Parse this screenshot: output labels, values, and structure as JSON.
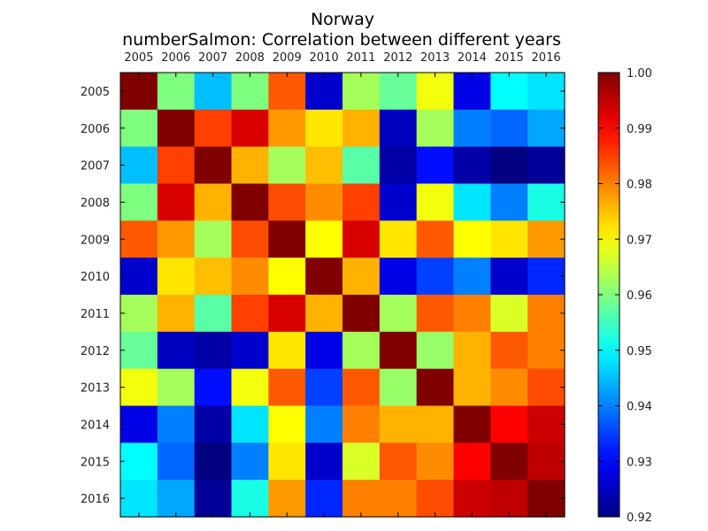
{
  "chart_data": {
    "type": "heatmap",
    "title": "Norway",
    "subtitle": "numberSalmon: Correlation between different years",
    "categories": [
      "2005",
      "2006",
      "2007",
      "2008",
      "2009",
      "2010",
      "2011",
      "2012",
      "2013",
      "2014",
      "2015",
      "2016"
    ],
    "values": [
      [
        1.0,
        0.96,
        0.945,
        0.96,
        0.983,
        0.926,
        0.963,
        0.958,
        0.969,
        0.928,
        0.95,
        0.948
      ],
      [
        0.96,
        1.0,
        0.985,
        0.993,
        0.978,
        0.972,
        0.976,
        0.925,
        0.963,
        0.94,
        0.938,
        0.943
      ],
      [
        0.945,
        0.985,
        1.0,
        0.976,
        0.963,
        0.975,
        0.957,
        0.923,
        0.931,
        0.923,
        0.92,
        0.922
      ],
      [
        0.96,
        0.993,
        0.976,
        1.0,
        0.984,
        0.979,
        0.985,
        0.926,
        0.969,
        0.948,
        0.94,
        0.952
      ],
      [
        0.983,
        0.978,
        0.963,
        0.984,
        1.0,
        0.97,
        0.993,
        0.972,
        0.983,
        0.97,
        0.972,
        0.978
      ],
      [
        0.926,
        0.972,
        0.975,
        0.979,
        0.97,
        1.0,
        0.976,
        0.928,
        0.935,
        0.94,
        0.926,
        0.933
      ],
      [
        0.963,
        0.976,
        0.957,
        0.985,
        0.993,
        0.976,
        1.0,
        0.963,
        0.983,
        0.98,
        0.967,
        0.98
      ],
      [
        0.958,
        0.925,
        0.923,
        0.926,
        0.972,
        0.928,
        0.963,
        1.0,
        0.962,
        0.976,
        0.983,
        0.98
      ],
      [
        0.969,
        0.963,
        0.931,
        0.969,
        0.983,
        0.935,
        0.983,
        0.962,
        1.0,
        0.976,
        0.979,
        0.984
      ],
      [
        0.928,
        0.94,
        0.923,
        0.948,
        0.97,
        0.94,
        0.98,
        0.976,
        0.976,
        1.0,
        0.99,
        0.994
      ],
      [
        0.95,
        0.938,
        0.92,
        0.94,
        0.972,
        0.926,
        0.967,
        0.983,
        0.979,
        0.99,
        1.0,
        0.995
      ],
      [
        0.948,
        0.943,
        0.922,
        0.952,
        0.978,
        0.933,
        0.98,
        0.98,
        0.984,
        0.994,
        0.995,
        1.0
      ]
    ],
    "colorbar": {
      "colormap": "jet",
      "range": [
        0.92,
        1.0
      ],
      "ticks": [
        "0.92",
        "0.93",
        "0.94",
        "0.95",
        "0.96",
        "0.97",
        "0.98",
        "0.99",
        "1.00"
      ]
    },
    "xaxis_position": "top",
    "grid": false
  }
}
